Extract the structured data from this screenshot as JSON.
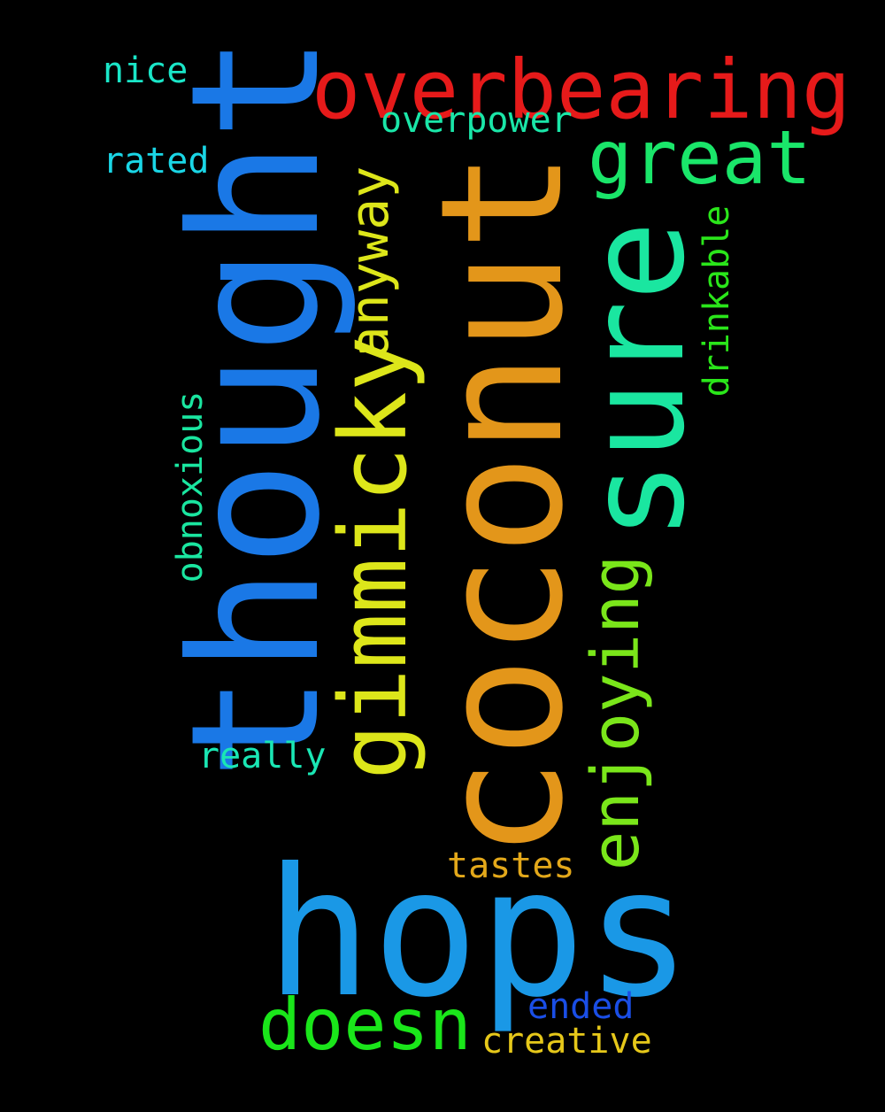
{
  "words": {
    "coconut": {
      "text": "coconut",
      "color": "#E3961A",
      "orientation": "vertical"
    },
    "thought": {
      "text": "thought",
      "color": "#1A78E6",
      "orientation": "vertical"
    },
    "hops": {
      "text": "hops",
      "color": "#1A98E6",
      "orientation": "horizontal"
    },
    "sure": {
      "text": "sure",
      "color": "#1AE6A0",
      "orientation": "vertical"
    },
    "gimmicky": {
      "text": "gimmicky",
      "color": "#DDE61A",
      "orientation": "vertical"
    },
    "overbearing": {
      "text": "overbearing",
      "color": "#E61A1A",
      "orientation": "horizontal"
    },
    "great": {
      "text": "great",
      "color": "#1AE66A",
      "orientation": "horizontal"
    },
    "enjoying": {
      "text": "enjoying",
      "color": "#7AE61A",
      "orientation": "vertical"
    },
    "doesn": {
      "text": "doesn",
      "color": "#1AE61A",
      "orientation": "horizontal"
    },
    "anyway": {
      "text": "anyway",
      "color": "#DDE61A",
      "orientation": "vertical"
    },
    "overpower": {
      "text": "overpower",
      "color": "#1AE6A8",
      "orientation": "horizontal"
    },
    "nice": {
      "text": "nice",
      "color": "#1AE6C8",
      "orientation": "horizontal"
    },
    "rated": {
      "text": "rated",
      "color": "#1AD6E6",
      "orientation": "horizontal"
    },
    "obnoxious": {
      "text": "obnoxious",
      "color": "#1AE6A0",
      "orientation": "vertical"
    },
    "drinkable": {
      "text": "drinkable",
      "color": "#2AE61A",
      "orientation": "vertical"
    },
    "really": {
      "text": "really",
      "color": "#1AE6B4",
      "orientation": "horizontal"
    },
    "tastes": {
      "text": "tastes",
      "color": "#E3A81A",
      "orientation": "horizontal"
    },
    "ended": {
      "text": "ended",
      "color": "#1A4EE6",
      "orientation": "horizontal"
    },
    "creative": {
      "text": "creative",
      "color": "#E6C81A",
      "orientation": "horizontal"
    }
  },
  "background": "#000000"
}
